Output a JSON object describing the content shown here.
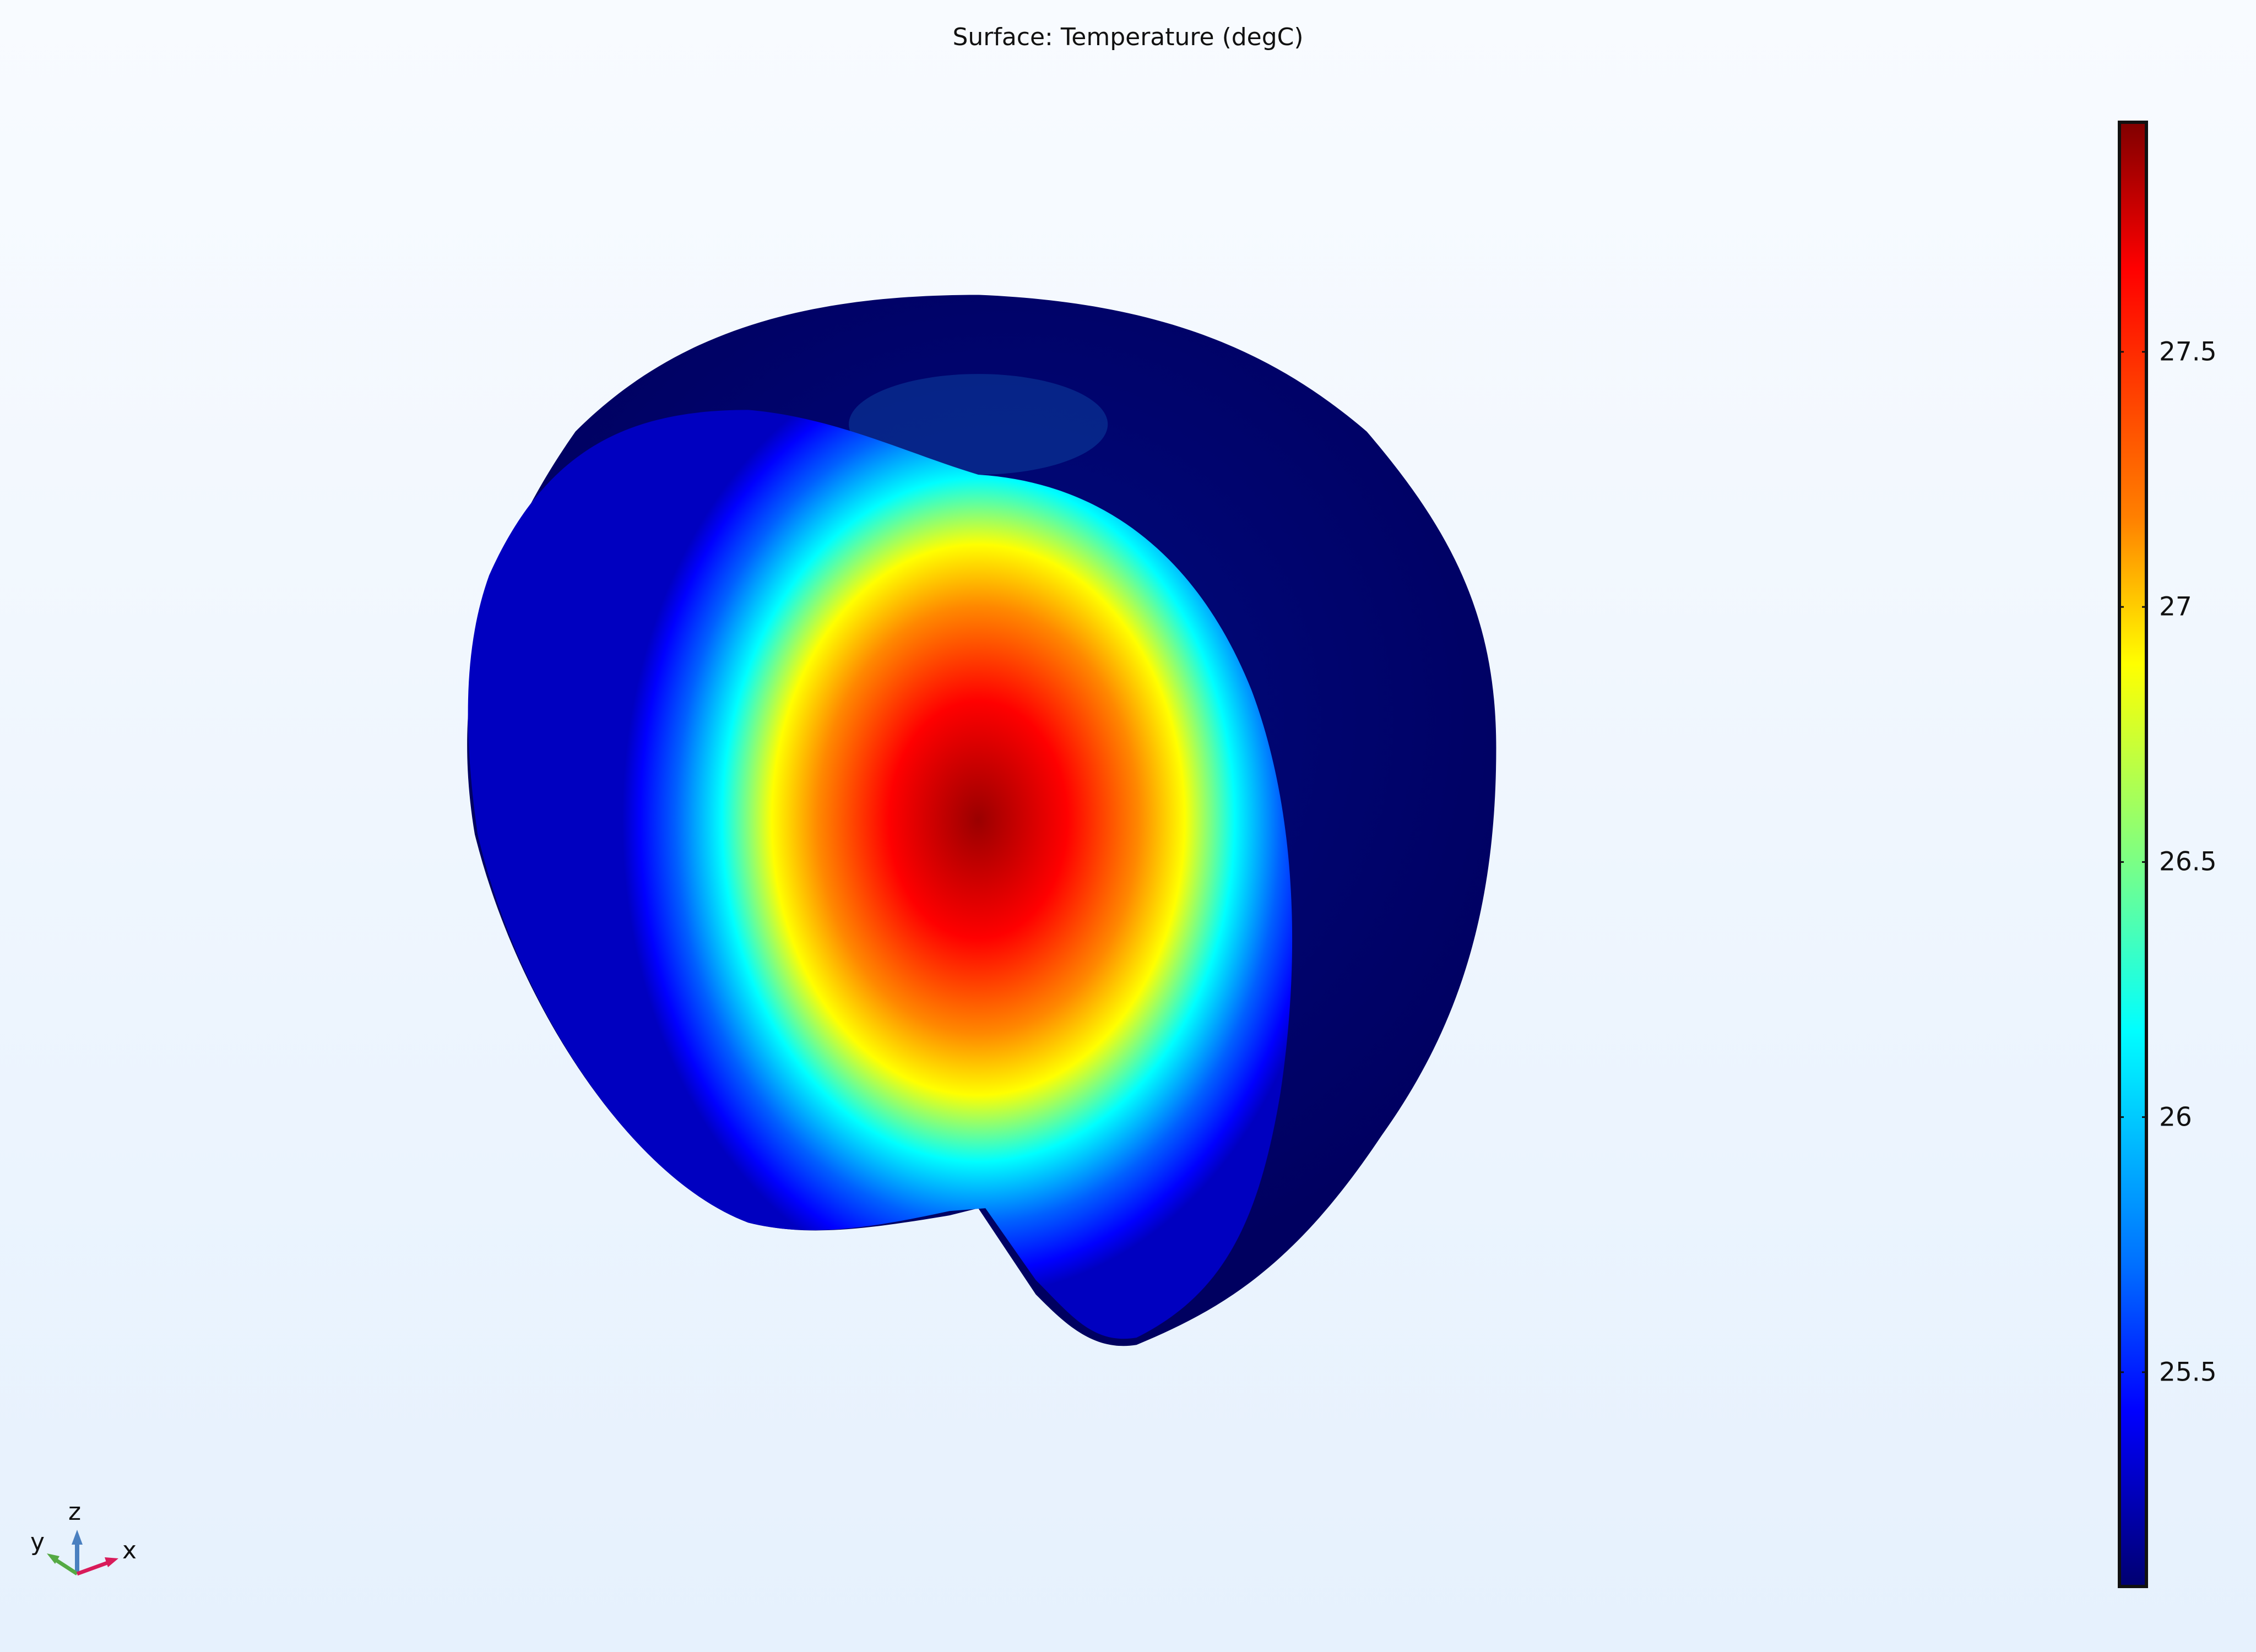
{
  "plot": {
    "title": "Surface: Temperature (degC)",
    "colormap": "Rainbow",
    "colorbar": {
      "min": 25.08,
      "max": 27.95,
      "ticks": [
        27.5,
        27,
        26.5,
        26,
        25.5
      ],
      "tick_labels": [
        "27.5",
        "27",
        "26.5",
        "26",
        "25.5"
      ],
      "colors": [
        "#800000",
        "#ff0000",
        "#ff8000",
        "#ffff00",
        "#80ff80",
        "#00ffff",
        "#0080ff",
        "#0000ff",
        "#000080"
      ]
    },
    "axes_triad": {
      "x_label": "x",
      "y_label": "y",
      "z_label": "z",
      "x_color": "#d81b5a",
      "y_color": "#55aa44",
      "z_color": "#4a80c0"
    }
  }
}
